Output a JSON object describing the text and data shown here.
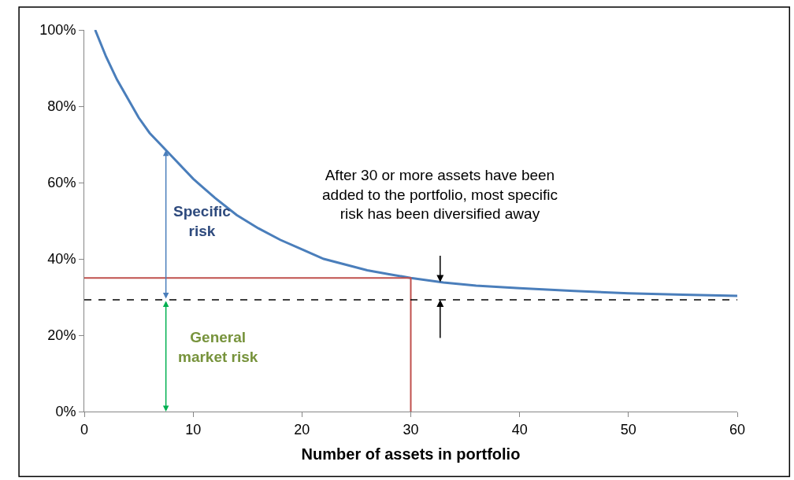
{
  "chart_data": {
    "type": "line",
    "xlabel": "Number of assets in portfolio",
    "series": [
      {
        "color": "#4a7ebb",
        "x": [
          1,
          2,
          3,
          4,
          5,
          6,
          7,
          8,
          10,
          12,
          14,
          16,
          18,
          20,
          22,
          24,
          26,
          28,
          30,
          33,
          36,
          40,
          45,
          50,
          55,
          60
        ],
        "values": [
          100,
          93,
          87,
          82,
          77,
          73,
          70,
          67,
          61,
          56,
          51.5,
          48,
          45,
          42.5,
          40,
          38.5,
          37,
          36,
          35,
          33.8,
          33,
          32.3,
          31.6,
          31,
          30.6,
          30.3
        ]
      },
      {
        "color": "#c0504d",
        "x": [
          0,
          30,
          30
        ],
        "values": [
          35,
          35,
          0
        ]
      }
    ],
    "xlim": [
      0,
      60
    ],
    "xticks": [
      0,
      10,
      20,
      30,
      40,
      50,
      60
    ],
    "ylim": [
      0,
      100
    ],
    "yticks": [
      {
        "value": 0,
        "label": "0%"
      },
      {
        "value": 20,
        "label": "20%"
      },
      {
        "value": 40,
        "label": "40%"
      },
      {
        "value": 60,
        "label": "60%"
      },
      {
        "value": 80,
        "label": "80%"
      },
      {
        "value": 100,
        "label": "100%"
      }
    ],
    "ref_lines": [
      {
        "axis": "y",
        "value": 29.3,
        "color": "#000000",
        "line_style": "dashed"
      }
    ],
    "annotations": [
      "Specific risk",
      "General market risk",
      "After 30 or more assets have been added to the portfolio, most specific risk has been diversified away"
    ],
    "marker": "none",
    "line_style": "solid"
  }
}
